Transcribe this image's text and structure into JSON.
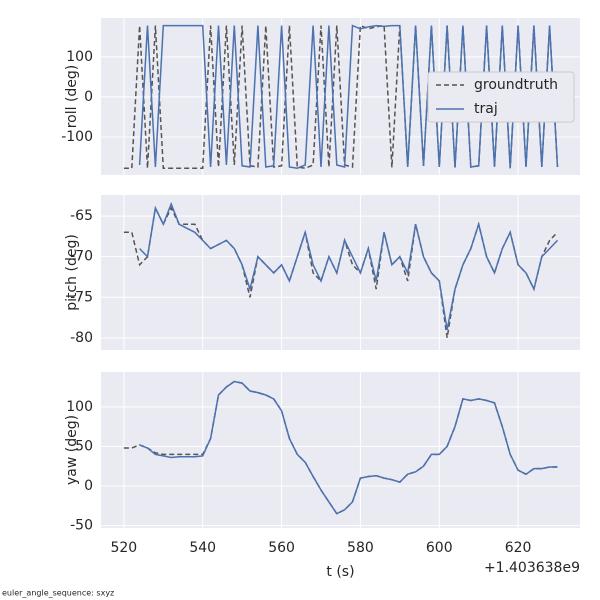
{
  "chart_data": [
    {
      "type": "line",
      "ylabel": "roll (deg)",
      "legend": "upper right",
      "x": [
        520,
        522,
        524,
        526,
        528,
        530,
        532,
        534,
        536,
        538,
        540,
        542,
        544,
        546,
        548,
        550,
        552,
        554,
        556,
        558,
        560,
        562,
        564,
        566,
        568,
        570,
        572,
        574,
        576,
        578,
        580,
        582,
        584,
        586,
        588,
        590,
        592,
        594,
        596,
        598,
        600,
        602,
        604,
        606,
        608,
        610,
        612,
        614,
        616,
        618,
        620,
        622,
        624,
        626,
        628,
        630
      ],
      "xlim": [
        514.2,
        635.7
      ],
      "xticks": [
        520,
        540,
        560,
        580,
        600,
        620
      ],
      "ylim": [
        -195,
        197
      ],
      "yticks": [
        -100,
        0,
        100
      ],
      "series": [
        {
          "name": "groundtruth",
          "color": "#555555",
          "dash": true,
          "values": [
            -178,
            -178,
            178,
            -178,
            178,
            -178,
            -178,
            -178,
            -178,
            -178,
            -178,
            178,
            -175,
            178,
            -170,
            178,
            -172,
            -175,
            178,
            -175,
            -172,
            178,
            -175,
            -178,
            -170,
            178,
            -175,
            178,
            -170,
            -175,
            178,
            170,
            175,
            178,
            -176,
            178,
            -175,
            178,
            -172,
            178,
            -175,
            178,
            -176,
            178,
            -175,
            -172,
            178,
            -175,
            178,
            -178,
            178,
            -175,
            178,
            -175,
            178,
            -175
          ]
        },
        {
          "name": "traj",
          "color": "#4c72b0",
          "dash": false,
          "values": [
            null,
            null,
            -170,
            178,
            -175,
            178,
            178,
            178,
            178,
            178,
            178,
            -175,
            178,
            -170,
            178,
            -172,
            -175,
            178,
            -175,
            -172,
            178,
            -175,
            -178,
            -170,
            178,
            -175,
            178,
            -170,
            -175,
            178,
            170,
            175,
            178,
            176,
            178,
            178,
            -175,
            178,
            -172,
            178,
            -175,
            178,
            -176,
            178,
            -175,
            -172,
            178,
            -175,
            178,
            -178,
            178,
            -175,
            178,
            -175,
            178,
            -175
          ]
        }
      ]
    },
    {
      "type": "line",
      "ylabel": "pitch (deg)",
      "x": [
        520,
        522,
        524,
        526,
        528,
        530,
        532,
        534,
        536,
        538,
        540,
        542,
        544,
        546,
        548,
        550,
        552,
        554,
        556,
        558,
        560,
        562,
        564,
        566,
        568,
        570,
        572,
        574,
        576,
        578,
        580,
        582,
        584,
        586,
        588,
        590,
        592,
        594,
        596,
        598,
        600,
        602,
        604,
        606,
        608,
        610,
        612,
        614,
        616,
        618,
        620,
        622,
        624,
        626,
        628,
        630
      ],
      "xlim": [
        514.2,
        635.7
      ],
      "xticks": [
        520,
        540,
        560,
        580,
        600,
        620
      ],
      "ylim": [
        -81.5,
        -62.4
      ],
      "yticks": [
        -80,
        -75,
        -70,
        -65
      ],
      "series": [
        {
          "name": "groundtruth",
          "color": "#555555",
          "dash": true,
          "values": [
            -67,
            -67,
            -71,
            -70,
            -64,
            -66,
            -64,
            -66,
            -66,
            -66,
            -68,
            -69,
            -68.5,
            -68,
            -69,
            -71,
            -75,
            -70,
            -71,
            -72,
            -71,
            -73,
            -70,
            -67,
            -72,
            -73,
            -70,
            -72,
            -68,
            -71,
            -72,
            -69,
            -74,
            -67,
            -71,
            -70,
            -73,
            -66,
            -70,
            -72,
            -73,
            -80,
            -74,
            -71,
            -69,
            -66,
            -70,
            -72,
            -69,
            -67,
            -71,
            -72,
            -74,
            -70,
            -68,
            -67
          ]
        },
        {
          "name": "traj",
          "color": "#4c72b0",
          "dash": false,
          "values": [
            null,
            null,
            -69,
            -70,
            -64,
            -66,
            -63.5,
            -66,
            -66.5,
            -67,
            -68,
            -69,
            -68.5,
            -68,
            -69,
            -71,
            -74,
            -70,
            -71,
            -72,
            -71,
            -73,
            -70,
            -67,
            -71,
            -73,
            -70,
            -72,
            -68,
            -70,
            -72,
            -69,
            -73,
            -67,
            -71,
            -70,
            -72,
            -66,
            -70,
            -72,
            -73,
            -79,
            -74,
            -71,
            -69,
            -66,
            -70,
            -72,
            -69,
            -67,
            -71,
            -72,
            -74,
            -70,
            -69,
            -68
          ]
        }
      ]
    },
    {
      "type": "line",
      "ylabel": "yaw (deg)",
      "xlabel": "t (s)",
      "x_offset": "+1.403638e9",
      "x": [
        520,
        522,
        524,
        526,
        528,
        530,
        532,
        534,
        536,
        538,
        540,
        542,
        544,
        546,
        548,
        550,
        552,
        554,
        556,
        558,
        560,
        562,
        564,
        566,
        568,
        570,
        572,
        574,
        576,
        578,
        580,
        582,
        584,
        586,
        588,
        590,
        592,
        594,
        596,
        598,
        600,
        602,
        604,
        606,
        608,
        610,
        612,
        614,
        616,
        618,
        620,
        622,
        624,
        626,
        628,
        630
      ],
      "xlim": [
        514.2,
        635.7
      ],
      "xticks": [
        520,
        540,
        560,
        580,
        600,
        620
      ],
      "ylim": [
        -53,
        144
      ],
      "yticks": [
        -50,
        0,
        50,
        100
      ],
      "series": [
        {
          "name": "groundtruth",
          "color": "#555555",
          "dash": true,
          "values": [
            48,
            48,
            52,
            48,
            42,
            40,
            40,
            40,
            40,
            40,
            40,
            60,
            115,
            125,
            132,
            130,
            120,
            118,
            115,
            110,
            95,
            60,
            40,
            30,
            12,
            -5,
            -20,
            -35,
            -30,
            -20,
            10,
            12,
            13,
            10,
            8,
            5,
            15,
            18,
            25,
            40,
            40,
            50,
            75,
            110,
            108,
            110,
            108,
            105,
            75,
            40,
            20,
            15,
            22,
            22,
            24,
            24
          ]
        },
        {
          "name": "traj",
          "color": "#4c72b0",
          "dash": false,
          "values": [
            null,
            null,
            52,
            48,
            40,
            38,
            36,
            37,
            37,
            37,
            38,
            60,
            115,
            125,
            132,
            130,
            120,
            118,
            115,
            110,
            95,
            60,
            40,
            30,
            12,
            -5,
            -20,
            -35,
            -30,
            -20,
            10,
            12,
            13,
            10,
            8,
            5,
            15,
            18,
            25,
            40,
            40,
            50,
            75,
            110,
            108,
            110,
            108,
            105,
            75,
            40,
            20,
            15,
            22,
            22,
            24,
            24
          ]
        }
      ]
    }
  ],
  "footer": "euler_angle_sequence: sxyz"
}
